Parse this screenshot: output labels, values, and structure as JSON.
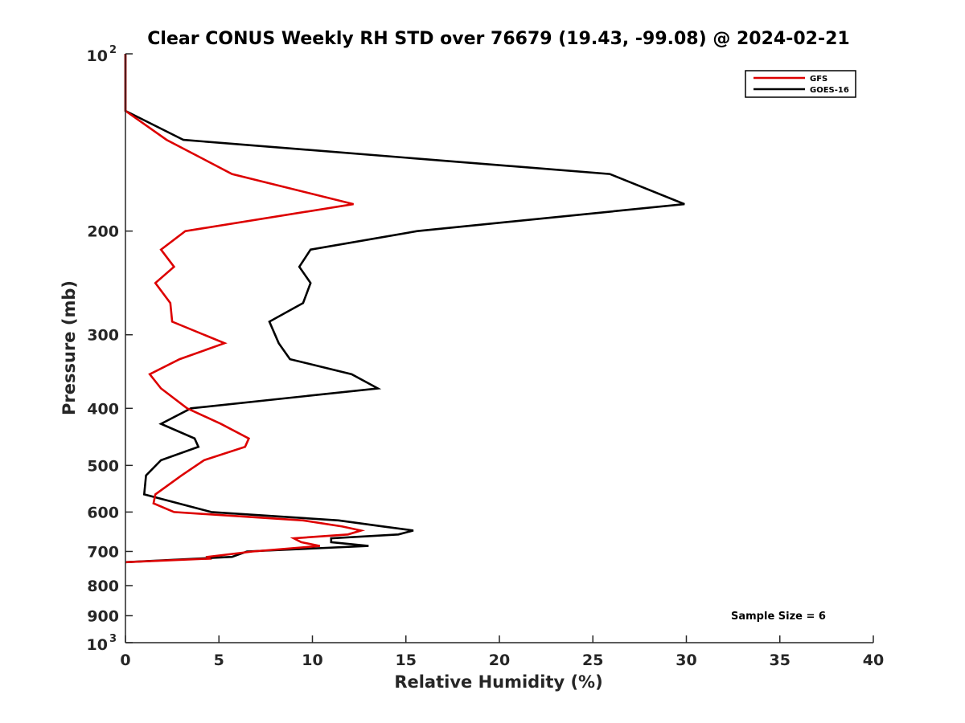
{
  "chart_data": {
    "type": "line",
    "title": "Clear CONUS Weekly RH STD over 76679 (19.43, -99.08) @ 2024-02-21",
    "xlabel": "Relative Humidity (%)",
    "ylabel": "Pressure (mb)",
    "xlim": [
      0,
      40
    ],
    "ylim": [
      100,
      1000
    ],
    "yscale": "log",
    "y_reversed": true,
    "x_ticks": [
      "0",
      "5",
      "10",
      "15",
      "20",
      "25",
      "30",
      "35",
      "40"
    ],
    "y_ticks": [
      {
        "value": 100,
        "base": "10",
        "exp": "2"
      },
      {
        "value": 200,
        "label": "200"
      },
      {
        "value": 300,
        "label": "300"
      },
      {
        "value": 400,
        "label": "400"
      },
      {
        "value": 500,
        "label": "500"
      },
      {
        "value": 600,
        "label": "600"
      },
      {
        "value": 700,
        "label": "700"
      },
      {
        "value": 800,
        "label": "800"
      },
      {
        "value": 900,
        "label": "900"
      },
      {
        "value": 1000,
        "base": "10",
        "exp": "3"
      }
    ],
    "legend_position": "top-right",
    "grid": false,
    "series": [
      {
        "name": "GFS",
        "color": "#dd0000",
        "points": [
          [
            0,
            100
          ],
          [
            0,
            125
          ],
          [
            2.2,
            140
          ],
          [
            5.7,
            160
          ],
          [
            12.2,
            180
          ],
          [
            3.2,
            200
          ],
          [
            1.9,
            215
          ],
          [
            2.6,
            230
          ],
          [
            1.6,
            245
          ],
          [
            2.4,
            265
          ],
          [
            2.5,
            285
          ],
          [
            5.3,
            310
          ],
          [
            2.9,
            330
          ],
          [
            1.3,
            350
          ],
          [
            1.9,
            370
          ],
          [
            3.3,
            400
          ],
          [
            5.1,
            425
          ],
          [
            6.6,
            450
          ],
          [
            6.4,
            465
          ],
          [
            4.2,
            490
          ],
          [
            3.0,
            520
          ],
          [
            1.6,
            560
          ],
          [
            1.5,
            580
          ],
          [
            2.6,
            600
          ],
          [
            9.5,
            620
          ],
          [
            11.6,
            635
          ],
          [
            12.6,
            645
          ],
          [
            11.9,
            655
          ],
          [
            9.0,
            665
          ],
          [
            9.4,
            675
          ],
          [
            10.4,
            685
          ],
          [
            6.8,
            700
          ],
          [
            4.4,
            715
          ],
          [
            4.5,
            720
          ],
          [
            0,
            730
          ]
        ]
      },
      {
        "name": "GOES-16",
        "color": "#000000",
        "points": [
          [
            0,
            100
          ],
          [
            0,
            125
          ],
          [
            3.1,
            140
          ],
          [
            25.9,
            160
          ],
          [
            29.9,
            180
          ],
          [
            15.6,
            200
          ],
          [
            9.9,
            215
          ],
          [
            9.3,
            230
          ],
          [
            9.9,
            245
          ],
          [
            9.5,
            265
          ],
          [
            7.7,
            285
          ],
          [
            8.2,
            310
          ],
          [
            8.8,
            330
          ],
          [
            12.1,
            350
          ],
          [
            13.5,
            370
          ],
          [
            3.5,
            400
          ],
          [
            1.9,
            425
          ],
          [
            3.7,
            450
          ],
          [
            3.9,
            465
          ],
          [
            1.9,
            490
          ],
          [
            1.1,
            520
          ],
          [
            1.0,
            560
          ],
          [
            4.6,
            600
          ],
          [
            11.4,
            620
          ],
          [
            13.8,
            635
          ],
          [
            15.4,
            645
          ],
          [
            14.6,
            655
          ],
          [
            11.0,
            665
          ],
          [
            11.0,
            675
          ],
          [
            13.0,
            685
          ],
          [
            6.5,
            700
          ],
          [
            5.7,
            715
          ],
          [
            0,
            730
          ]
        ]
      }
    ]
  },
  "annotation": "Sample Size = 6"
}
